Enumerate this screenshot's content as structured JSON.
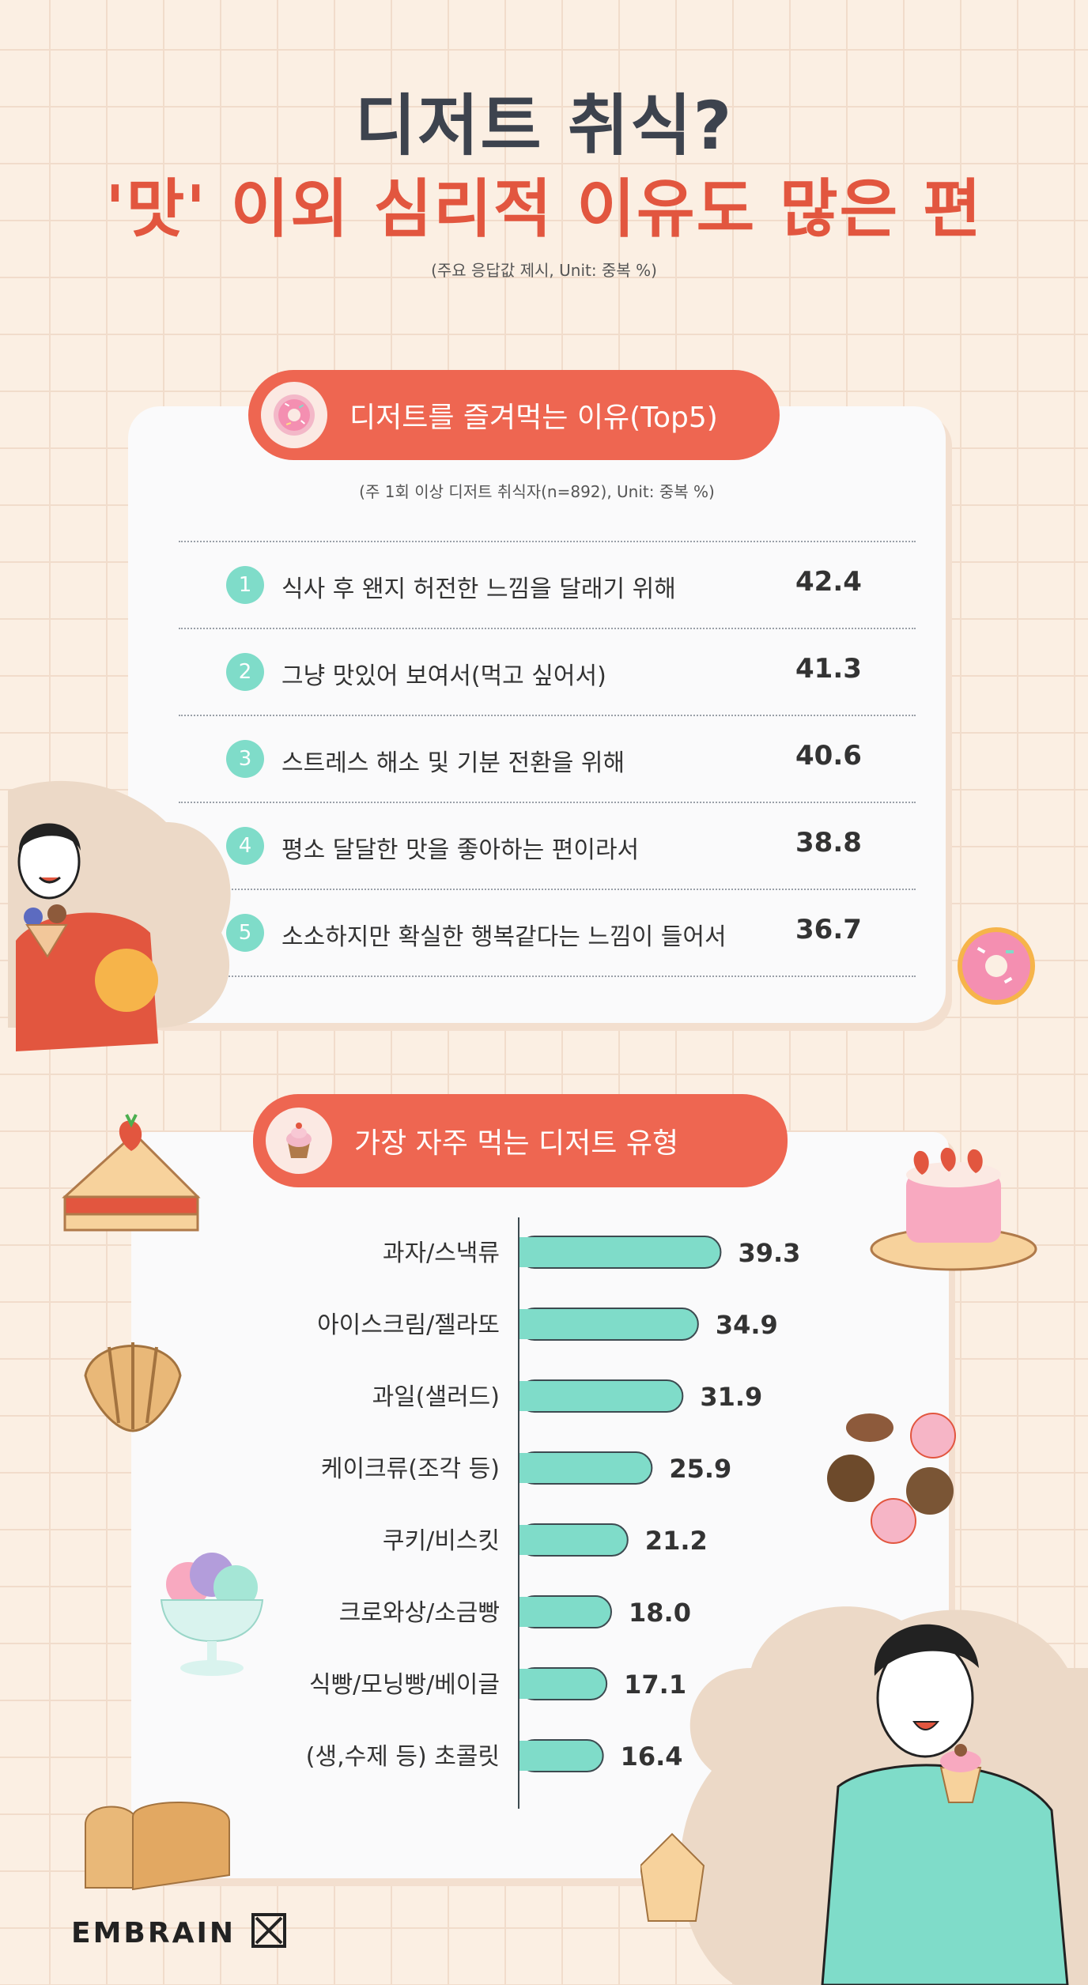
{
  "header": {
    "title_line1": "디저트 취식?",
    "title_line2": "'맛' 이외 심리적 이유도 많은 편",
    "note": "(주요 응답값 제시, Unit: 중복 %)"
  },
  "section1": {
    "title": "디저트를 즐겨먹는 이유(Top5)",
    "icon": "donut-icon",
    "note": "(주 1회 이상 디저트 취식자(n=892), Unit: 중복 %)",
    "items": [
      {
        "rank": "1",
        "label": "식사 후 왠지 허전한 느낌을 달래기 위해",
        "value": "42.4"
      },
      {
        "rank": "2",
        "label": "그냥 맛있어 보여서(먹고 싶어서)",
        "value": "41.3"
      },
      {
        "rank": "3",
        "label": "스트레스 해소 및 기분 전환을 위해",
        "value": "40.6"
      },
      {
        "rank": "4",
        "label": "평소 달달한 맛을 좋아하는 편이라서",
        "value": "38.8"
      },
      {
        "rank": "5",
        "label": "소소하지만 확실한 행복같다는 느낌이 들어서",
        "value": "36.7"
      }
    ]
  },
  "section2": {
    "title": "가장 자주 먹는 디저트 유형",
    "icon": "cupcake-icon"
  },
  "chart_data": {
    "type": "bar",
    "orientation": "horizontal",
    "title": "가장 자주 먹는 디저트 유형",
    "categories": [
      "과자/스낵류",
      "아이스크림/젤라또",
      "과일(샐러드)",
      "케이크류(조각 등)",
      "쿠키/비스킷",
      "크로와상/소금빵",
      "식빵/모닝빵/베이글",
      "(생,수제 등) 초콜릿"
    ],
    "values": [
      39.3,
      34.9,
      31.9,
      25.9,
      21.2,
      18.0,
      17.1,
      16.4
    ],
    "value_labels": [
      "39.3",
      "34.9",
      "31.9",
      "25.9",
      "21.2",
      "18.0",
      "17.1",
      "16.4"
    ],
    "xlim": [
      0,
      45
    ],
    "bar_color": "#7fdcc9",
    "bar_outline": "#3d4a50"
  },
  "colors": {
    "accent": "#ee6651",
    "title_dark": "#3d434e",
    "title_red": "#e2563f",
    "teal": "#7fdcc9",
    "background": "#fbefe3"
  },
  "footer": {
    "brand": "EMBRAIN"
  }
}
